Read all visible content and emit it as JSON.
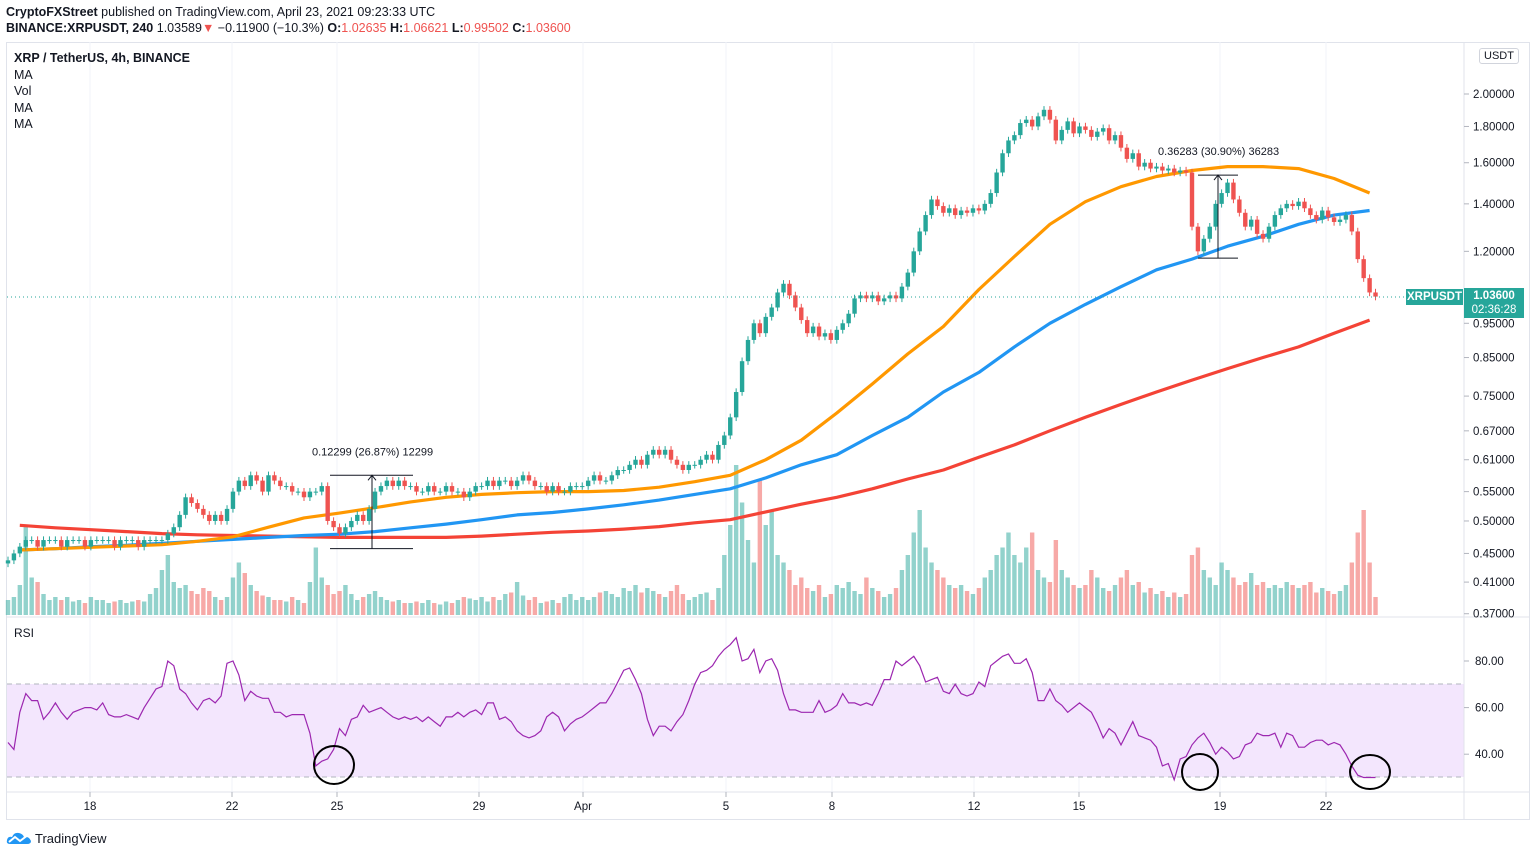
{
  "header": {
    "publisher": "CryptoFXStreet",
    "published_text": "published on TradingView.com, April 23, 2021 09:23:33 UTC",
    "symbol_line": "BINANCE:XRPUSDT, 240",
    "last": "1.03589",
    "change": "−0.11900 (−10.3%)",
    "o_label": "O:",
    "o": "1.02635",
    "h_label": "H:",
    "h": "1.06621",
    "l_label": "L:",
    "l": "0.99502",
    "c_label": "C:",
    "c": "1.03600"
  },
  "legend": [
    "XRP / TetherUS, 4h, BINANCE",
    "MA",
    "Vol",
    "MA",
    "MA"
  ],
  "currency": "USDT",
  "price_badge": {
    "symbol": "XRPUSDT",
    "price": "1.03600",
    "countdown": "02:36:28"
  },
  "rsi_title": "RSI",
  "footer": {
    "brand": "TradingView"
  },
  "colors": {
    "up": "#26a69a",
    "down": "#ef5350",
    "ma_orange": "#ff9800",
    "ma_blue": "#2196f3",
    "ma_red": "#f44336",
    "rsi": "#9c27b0",
    "rsi_band": "#f3e6fd"
  },
  "chart_data": {
    "type": "candlestick",
    "interval": "4h",
    "y_scale": "log",
    "y_ticks": [
      "2.00000",
      "1.80000",
      "1.60000",
      "1.40000",
      "1.20000",
      "0.95000",
      "0.85000",
      "0.75000",
      "0.67000",
      "0.61000",
      "0.55000",
      "0.50000",
      "0.45000",
      "0.41000",
      "0.37000"
    ],
    "x_ticks": [
      "18",
      "22",
      "25",
      "29",
      "Apr",
      "5",
      "8",
      "12",
      "15",
      "19",
      "22"
    ],
    "close": [
      0.44,
      0.45,
      0.46,
      0.47,
      0.47,
      0.46,
      0.47,
      0.47,
      0.47,
      0.46,
      0.47,
      0.47,
      0.47,
      0.46,
      0.47,
      0.47,
      0.47,
      0.47,
      0.46,
      0.47,
      0.47,
      0.47,
      0.46,
      0.47,
      0.47,
      0.47,
      0.47,
      0.48,
      0.49,
      0.51,
      0.54,
      0.53,
      0.52,
      0.51,
      0.5,
      0.51,
      0.5,
      0.52,
      0.55,
      0.57,
      0.56,
      0.58,
      0.57,
      0.55,
      0.58,
      0.57,
      0.56,
      0.56,
      0.55,
      0.55,
      0.54,
      0.55,
      0.55,
      0.56,
      0.5,
      0.49,
      0.48,
      0.49,
      0.5,
      0.51,
      0.5,
      0.52,
      0.55,
      0.56,
      0.57,
      0.56,
      0.57,
      0.56,
      0.56,
      0.55,
      0.55,
      0.56,
      0.55,
      0.55,
      0.56,
      0.55,
      0.55,
      0.54,
      0.55,
      0.56,
      0.56,
      0.57,
      0.56,
      0.57,
      0.57,
      0.56,
      0.57,
      0.58,
      0.57,
      0.56,
      0.56,
      0.55,
      0.56,
      0.55,
      0.55,
      0.56,
      0.56,
      0.56,
      0.57,
      0.58,
      0.57,
      0.57,
      0.58,
      0.59,
      0.59,
      0.6,
      0.61,
      0.6,
      0.62,
      0.63,
      0.62,
      0.63,
      0.61,
      0.6,
      0.59,
      0.6,
      0.6,
      0.61,
      0.62,
      0.61,
      0.64,
      0.66,
      0.7,
      0.76,
      0.84,
      0.9,
      0.95,
      0.92,
      0.97,
      1.0,
      1.05,
      1.08,
      1.04,
      1.0,
      0.96,
      0.92,
      0.94,
      0.91,
      0.92,
      0.9,
      0.93,
      0.95,
      0.98,
      1.03,
      1.04,
      1.03,
      1.04,
      1.02,
      1.03,
      1.04,
      1.03,
      1.07,
      1.12,
      1.2,
      1.28,
      1.35,
      1.42,
      1.39,
      1.36,
      1.38,
      1.35,
      1.37,
      1.36,
      1.38,
      1.37,
      1.4,
      1.45,
      1.55,
      1.65,
      1.72,
      1.75,
      1.82,
      1.84,
      1.8,
      1.86,
      1.9,
      1.84,
      1.72,
      1.78,
      1.83,
      1.76,
      1.8,
      1.78,
      1.74,
      1.77,
      1.79,
      1.72,
      1.75,
      1.68,
      1.62,
      1.65,
      1.58,
      1.6,
      1.57,
      1.58,
      1.56,
      1.57,
      1.55,
      1.56,
      1.55,
      1.3,
      1.2,
      1.25,
      1.3,
      1.4,
      1.45,
      1.5,
      1.42,
      1.36,
      1.3,
      1.33,
      1.27,
      1.25,
      1.3,
      1.35,
      1.38,
      1.4,
      1.39,
      1.41,
      1.38,
      1.35,
      1.33,
      1.37,
      1.34,
      1.32,
      1.33,
      1.35,
      1.28,
      1.17,
      1.1,
      1.05,
      1.036
    ],
    "volume_relative": [
      10,
      12,
      20,
      60,
      25,
      22,
      14,
      10,
      12,
      10,
      12,
      9,
      10,
      8,
      12,
      10,
      10,
      8,
      9,
      10,
      8,
      9,
      10,
      9,
      14,
      18,
      30,
      40,
      22,
      18,
      20,
      16,
      14,
      18,
      16,
      12,
      10,
      12,
      25,
      35,
      28,
      20,
      16,
      13,
      12,
      10,
      10,
      9,
      12,
      10,
      8,
      22,
      45,
      25,
      20,
      14,
      16,
      20,
      14,
      10,
      12,
      14,
      16,
      12,
      10,
      9,
      10,
      8,
      8,
      9,
      8,
      10,
      8,
      7,
      9,
      8,
      10,
      12,
      11,
      10,
      12,
      9,
      12,
      10,
      14,
      15,
      22,
      13,
      10,
      12,
      8,
      9,
      10,
      8,
      12,
      14,
      10,
      12,
      10,
      12,
      15,
      16,
      14,
      12,
      18,
      16,
      20,
      15,
      18,
      16,
      14,
      12,
      16,
      20,
      14,
      10,
      12,
      14,
      15,
      10,
      18,
      40,
      60,
      100,
      75,
      50,
      35,
      90,
      60,
      70,
      40,
      35,
      30,
      20,
      25,
      18,
      16,
      20,
      12,
      14,
      20,
      18,
      22,
      16,
      14,
      25,
      18,
      16,
      12,
      14,
      18,
      30,
      40,
      55,
      70,
      45,
      35,
      30,
      25,
      20,
      18,
      20,
      16,
      14,
      18,
      25,
      30,
      40,
      45,
      55,
      40,
      35,
      45,
      55,
      30,
      25,
      22,
      50,
      30,
      25,
      20,
      18,
      20,
      30,
      25,
      18,
      16,
      20,
      25,
      30,
      20,
      22,
      15,
      18,
      14,
      16,
      12,
      15,
      12,
      14,
      40,
      45,
      30,
      25,
      20,
      35,
      30,
      25,
      20,
      22,
      28,
      20,
      22,
      18,
      20,
      18,
      22,
      20,
      18,
      20,
      22,
      15,
      18,
      16,
      14,
      16,
      20,
      35,
      55,
      70,
      35,
      12
    ],
    "ma_daily": {
      "orange": [
        0.455,
        0.457,
        0.459,
        0.461,
        0.463,
        0.468,
        0.475,
        0.49,
        0.505,
        0.513,
        0.522,
        0.532,
        0.54,
        0.545,
        0.548,
        0.55,
        0.55,
        0.552,
        0.558,
        0.568,
        0.58,
        0.61,
        0.65,
        0.71,
        0.78,
        0.86,
        0.94,
        1.06,
        1.18,
        1.31,
        1.41,
        1.48,
        1.53,
        1.56,
        1.58,
        1.58,
        1.57,
        1.52,
        1.45
      ],
      "blue": [
        0.455,
        0.457,
        0.46,
        0.462,
        0.465,
        0.468,
        0.471,
        0.474,
        0.477,
        0.479,
        0.483,
        0.489,
        0.495,
        0.502,
        0.51,
        0.514,
        0.52,
        0.527,
        0.535,
        0.545,
        0.555,
        0.575,
        0.6,
        0.62,
        0.66,
        0.7,
        0.76,
        0.81,
        0.88,
        0.95,
        1.01,
        1.07,
        1.13,
        1.17,
        1.22,
        1.26,
        1.31,
        1.35,
        1.37
      ],
      "red": [
        0.493,
        0.489,
        0.486,
        0.483,
        0.48,
        0.478,
        0.477,
        0.476,
        0.475,
        0.474,
        0.474,
        0.474,
        0.474,
        0.476,
        0.479,
        0.482,
        0.484,
        0.487,
        0.491,
        0.497,
        0.502,
        0.515,
        0.528,
        0.54,
        0.555,
        0.573,
        0.59,
        0.615,
        0.64,
        0.67,
        0.7,
        0.73,
        0.76,
        0.79,
        0.82,
        0.85,
        0.88,
        0.92,
        0.96
      ]
    },
    "rsi": {
      "ticks": [
        "80.00",
        "60.00",
        "40.00"
      ],
      "upper": 70,
      "lower": 30,
      "values": [
        45,
        42,
        58,
        66,
        63,
        63,
        55,
        58,
        62,
        58,
        55,
        58,
        59,
        60,
        60,
        59,
        62,
        57,
        56,
        56,
        57,
        56,
        55,
        60,
        64,
        68,
        69,
        80,
        78,
        68,
        66,
        62,
        59,
        63,
        64,
        62,
        65,
        79,
        80,
        74,
        63,
        67,
        65,
        64,
        64,
        58,
        58,
        56,
        57,
        57,
        57,
        49,
        35,
        37,
        38,
        42,
        51,
        48,
        55,
        56,
        61,
        58,
        59,
        60,
        58,
        56,
        55,
        56,
        55,
        56,
        54,
        56,
        54,
        52,
        56,
        56,
        58,
        56,
        58,
        59,
        57,
        62,
        62,
        55,
        56,
        54,
        50,
        48,
        47,
        48,
        50,
        56,
        58,
        56,
        50,
        53,
        55,
        56,
        58,
        60,
        62,
        62,
        66,
        71,
        76,
        77,
        72,
        66,
        55,
        48,
        52,
        52,
        50,
        54,
        57,
        63,
        70,
        75,
        76,
        78,
        82,
        85,
        87,
        90,
        80,
        81,
        85,
        75,
        80,
        81,
        76,
        66,
        59,
        59,
        58,
        58,
        58,
        63,
        58,
        59,
        61,
        66,
        62,
        62,
        61,
        62,
        61,
        66,
        72,
        72,
        80,
        78,
        80,
        82,
        78,
        71,
        72,
        73,
        67,
        66,
        70,
        66,
        65,
        66,
        71,
        69,
        78,
        80,
        82,
        83,
        79,
        79,
        81,
        75,
        63,
        63,
        68,
        63,
        61,
        58,
        60,
        62,
        60,
        58,
        53,
        47,
        51,
        49,
        44,
        49,
        54,
        48,
        47,
        46,
        43,
        35,
        36,
        29,
        38,
        39,
        44,
        47,
        49,
        45,
        40,
        43,
        41,
        38,
        39,
        44,
        45,
        49,
        48,
        48,
        49,
        43,
        49,
        48,
        43,
        43,
        45,
        46,
        46,
        44,
        45,
        44,
        40,
        35,
        31,
        30,
        30,
        30
      ]
    },
    "annotations": [
      {
        "label": "0.12299 (26.87%) 12299",
        "from": 0.457,
        "to": 0.58
      },
      {
        "label": "0.36283 (30.90%) 36283",
        "from": 1.174,
        "to": 1.537
      }
    ]
  }
}
